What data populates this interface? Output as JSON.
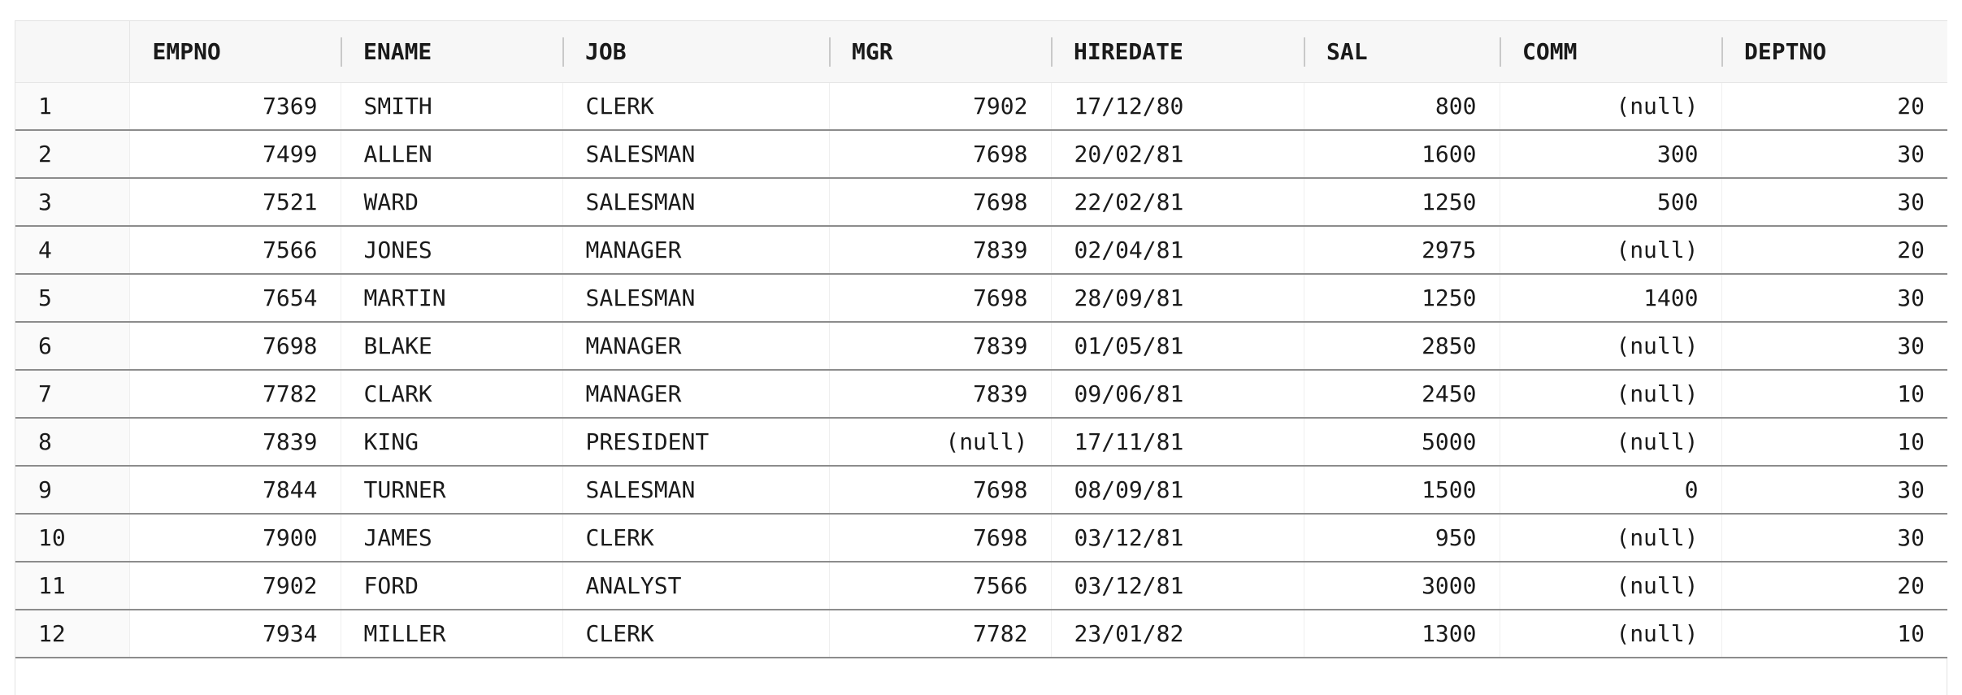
{
  "grid": {
    "columns": [
      {
        "key": "rownum",
        "label": "",
        "align": "left"
      },
      {
        "key": "empno",
        "label": "EMPNO",
        "align": "right"
      },
      {
        "key": "ename",
        "label": "ENAME",
        "align": "left"
      },
      {
        "key": "job",
        "label": "JOB",
        "align": "left"
      },
      {
        "key": "mgr",
        "label": "MGR",
        "align": "right"
      },
      {
        "key": "hiredate",
        "label": "HIREDATE",
        "align": "left"
      },
      {
        "key": "sal",
        "label": "SAL",
        "align": "right"
      },
      {
        "key": "comm",
        "label": "COMM",
        "align": "right"
      },
      {
        "key": "deptno",
        "label": "DEPTNO",
        "align": "right"
      }
    ],
    "rows": [
      {
        "rownum": "1",
        "empno": "7369",
        "ename": "SMITH",
        "job": "CLERK",
        "mgr": "7902",
        "hiredate": "17/12/80",
        "sal": "800",
        "comm": "(null)",
        "deptno": "20"
      },
      {
        "rownum": "2",
        "empno": "7499",
        "ename": "ALLEN",
        "job": "SALESMAN",
        "mgr": "7698",
        "hiredate": "20/02/81",
        "sal": "1600",
        "comm": "300",
        "deptno": "30"
      },
      {
        "rownum": "3",
        "empno": "7521",
        "ename": "WARD",
        "job": "SALESMAN",
        "mgr": "7698",
        "hiredate": "22/02/81",
        "sal": "1250",
        "comm": "500",
        "deptno": "30"
      },
      {
        "rownum": "4",
        "empno": "7566",
        "ename": "JONES",
        "job": "MANAGER",
        "mgr": "7839",
        "hiredate": "02/04/81",
        "sal": "2975",
        "comm": "(null)",
        "deptno": "20"
      },
      {
        "rownum": "5",
        "empno": "7654",
        "ename": "MARTIN",
        "job": "SALESMAN",
        "mgr": "7698",
        "hiredate": "28/09/81",
        "sal": "1250",
        "comm": "1400",
        "deptno": "30"
      },
      {
        "rownum": "6",
        "empno": "7698",
        "ename": "BLAKE",
        "job": "MANAGER",
        "mgr": "7839",
        "hiredate": "01/05/81",
        "sal": "2850",
        "comm": "(null)",
        "deptno": "30"
      },
      {
        "rownum": "7",
        "empno": "7782",
        "ename": "CLARK",
        "job": "MANAGER",
        "mgr": "7839",
        "hiredate": "09/06/81",
        "sal": "2450",
        "comm": "(null)",
        "deptno": "10"
      },
      {
        "rownum": "8",
        "empno": "7839",
        "ename": "KING",
        "job": "PRESIDENT",
        "mgr": "(null)",
        "hiredate": "17/11/81",
        "sal": "5000",
        "comm": "(null)",
        "deptno": "10"
      },
      {
        "rownum": "9",
        "empno": "7844",
        "ename": "TURNER",
        "job": "SALESMAN",
        "mgr": "7698",
        "hiredate": "08/09/81",
        "sal": "1500",
        "comm": "0",
        "deptno": "30"
      },
      {
        "rownum": "10",
        "empno": "7900",
        "ename": "JAMES",
        "job": "CLERK",
        "mgr": "7698",
        "hiredate": "03/12/81",
        "sal": "950",
        "comm": "(null)",
        "deptno": "30"
      },
      {
        "rownum": "11",
        "empno": "7902",
        "ename": "FORD",
        "job": "ANALYST",
        "mgr": "7566",
        "hiredate": "03/12/81",
        "sal": "3000",
        "comm": "(null)",
        "deptno": "20"
      },
      {
        "rownum": "12",
        "empno": "7934",
        "ename": "MILLER",
        "job": "CLERK",
        "mgr": "7782",
        "hiredate": "23/01/82",
        "sal": "1300",
        "comm": "(null)",
        "deptno": "10"
      }
    ]
  }
}
